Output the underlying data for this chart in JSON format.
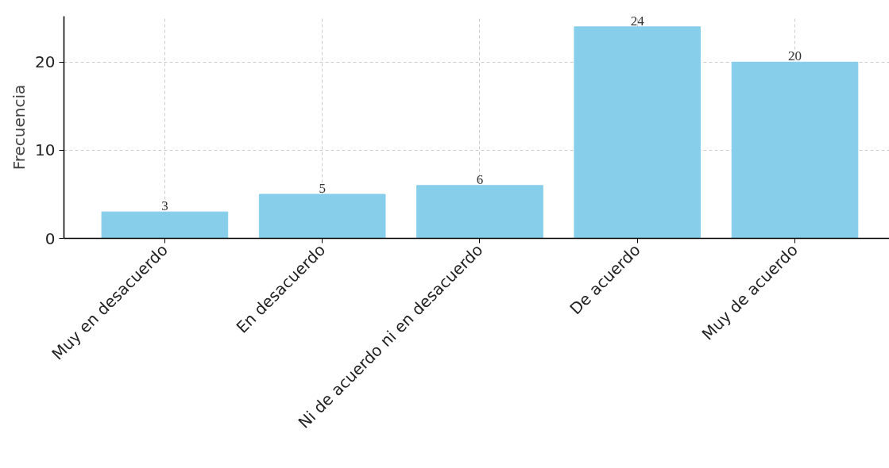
{
  "chart_data": {
    "type": "bar",
    "ylabel": "Frecuencia",
    "categories": [
      "Muy en desacuerdo",
      "En desacuerdo",
      "Ni de acuerdo ni en desacuerdo",
      "De acuerdo",
      "Muy de acuerdo"
    ],
    "values": [
      3,
      5,
      6,
      24,
      20
    ],
    "color": "#87ceeb",
    "ylim": [
      0,
      25.2
    ],
    "yticks": [
      0,
      10,
      20
    ],
    "grid": true,
    "data_labels": true
  }
}
